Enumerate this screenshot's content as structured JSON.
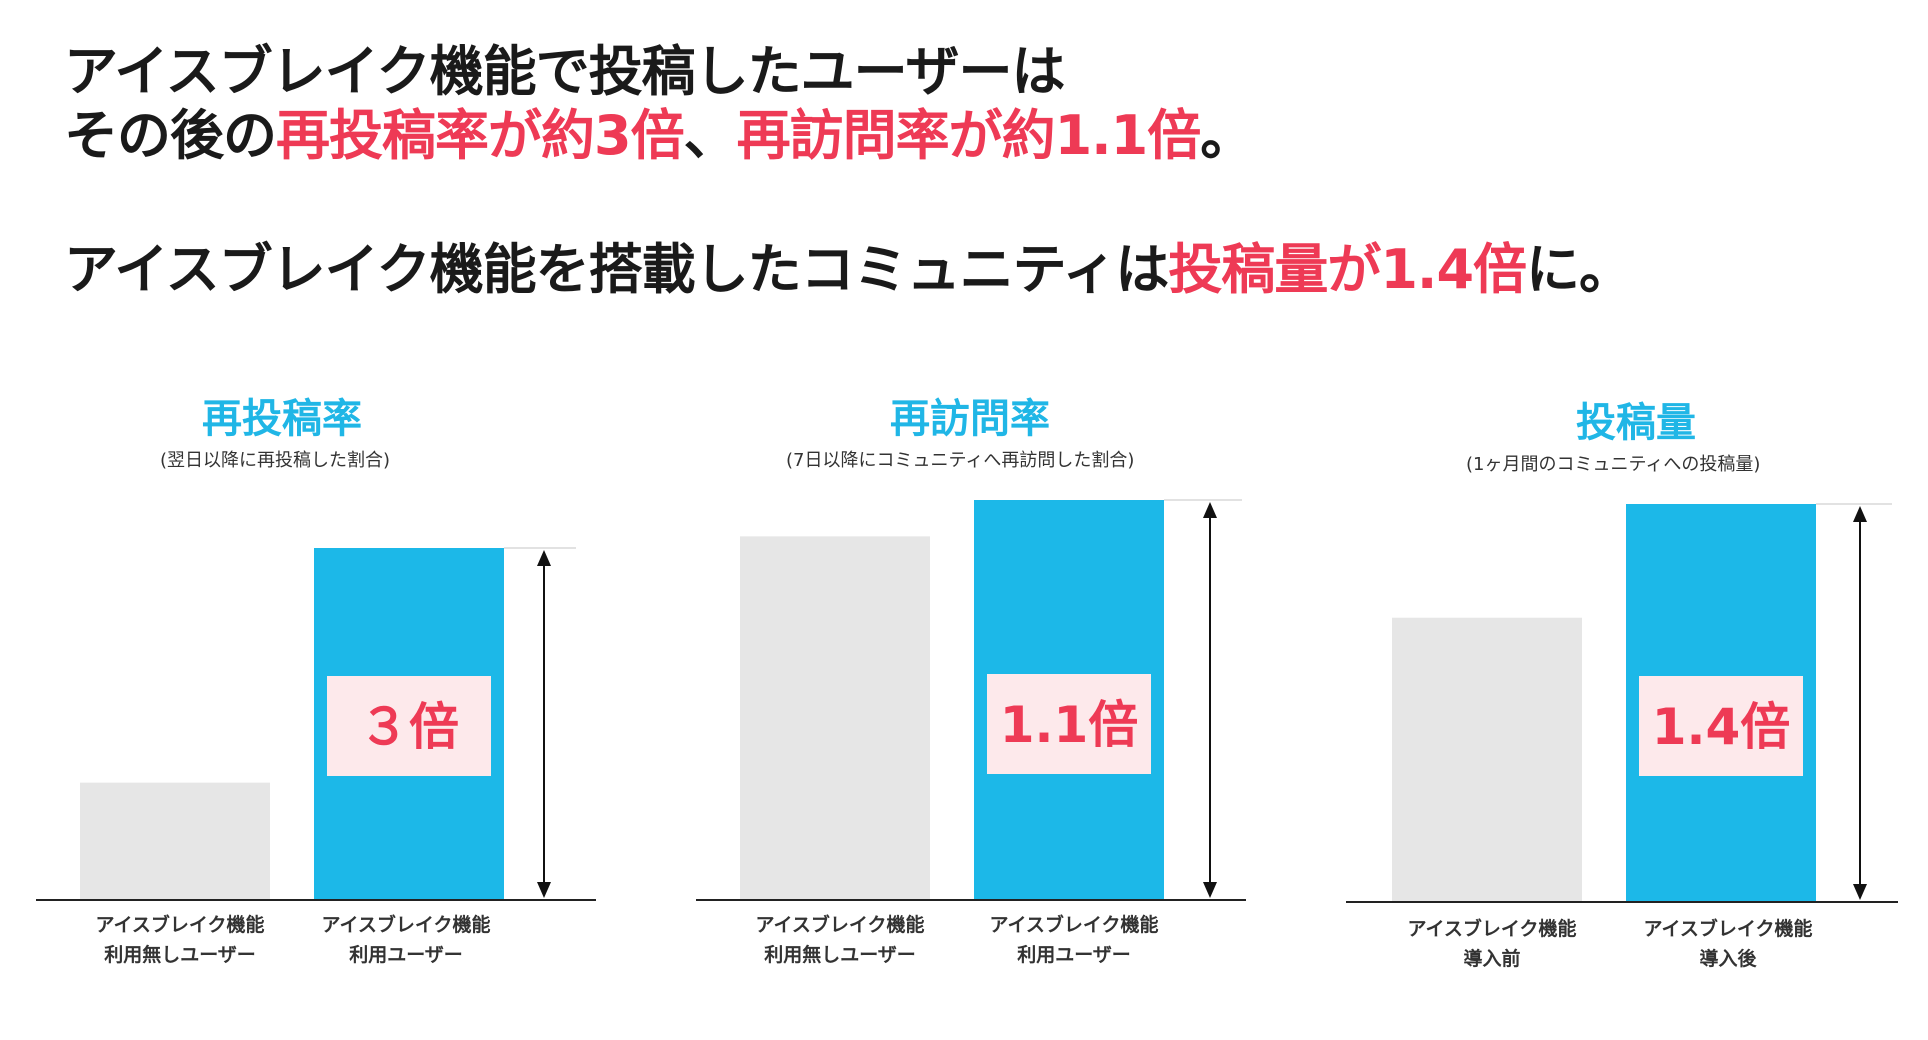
{
  "headline": {
    "line1": "アイスブレイク機能で投稿したユーザーは",
    "line2_prefix": "その後の",
    "line2_highlight1": "再投稿率が約3倍",
    "line2_sep": "、",
    "line2_highlight2": "再訪問率が約1.1倍",
    "line2_suffix": "。",
    "line3_prefix": "アイスブレイク機能を搭載したコミュニティは",
    "line3_highlight": "投稿量が1.4倍",
    "line3_suffix": "に。"
  },
  "colors": {
    "highlight": "#ee3a55",
    "title": "#20b6e6",
    "bar_before": "#e6e6e6",
    "bar_after": "#1cb8e8",
    "badge_bg": "#fde9eb"
  },
  "chart_data": [
    {
      "type": "bar",
      "title": "再投稿率",
      "subtitle": "(翌日以降に再投稿した割合)",
      "categories": [
        [
          "アイスブレイク機能",
          "利用無しユーザー"
        ],
        [
          "アイスブレイク機能",
          "利用ユーザー"
        ]
      ],
      "values": [
        1,
        3
      ],
      "ylim": [
        0,
        3
      ],
      "annotation": "３倍"
    },
    {
      "type": "bar",
      "title": "再訪問率",
      "subtitle": "(7日以降にコミュニティへ再訪問した割合)",
      "categories": [
        [
          "アイスブレイク機能",
          "利用無しユーザー"
        ],
        [
          "アイスブレイク機能",
          "利用ユーザー"
        ]
      ],
      "values": [
        1,
        1.1
      ],
      "ylim": [
        0,
        1.1
      ],
      "annotation": "1.1倍"
    },
    {
      "type": "bar",
      "title": "投稿量",
      "subtitle": "(1ヶ月間のコミュニティへの投稿量)",
      "categories": [
        [
          "アイスブレイク機能",
          "導入前"
        ],
        [
          "アイスブレイク機能",
          "導入後"
        ]
      ],
      "values": [
        1,
        1.4
      ],
      "ylim": [
        0,
        1.4
      ],
      "annotation": "1.4倍"
    }
  ]
}
